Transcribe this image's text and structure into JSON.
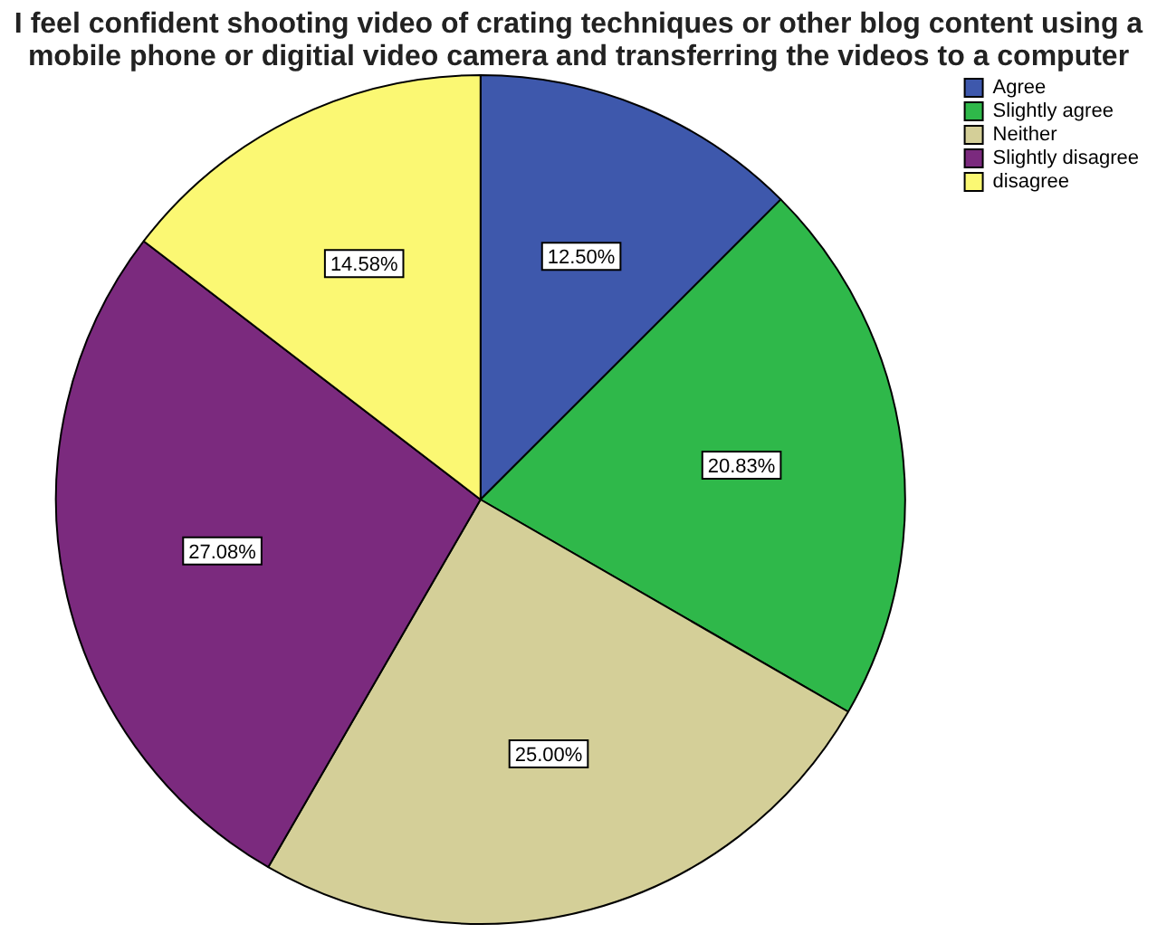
{
  "chart_data": {
    "type": "pie",
    "title": "I feel confident shooting video of crating techniques or other blog content using a mobile phone or digitial video camera and transferring the videos to a computer",
    "categories": [
      "Agree",
      "Slightly agree",
      "Neither",
      "Slightly disagree",
      "disagree"
    ],
    "values": [
      12.5,
      20.83,
      25.0,
      27.08,
      14.58
    ],
    "colors": [
      "#3e58ac",
      "#2fb84a",
      "#d4cf98",
      "#7b2a7e",
      "#fbf873"
    ],
    "value_labels": [
      "12.50%",
      "20.83%",
      "25.00%",
      "27.08%",
      "14.58%"
    ],
    "legend": "top right"
  }
}
